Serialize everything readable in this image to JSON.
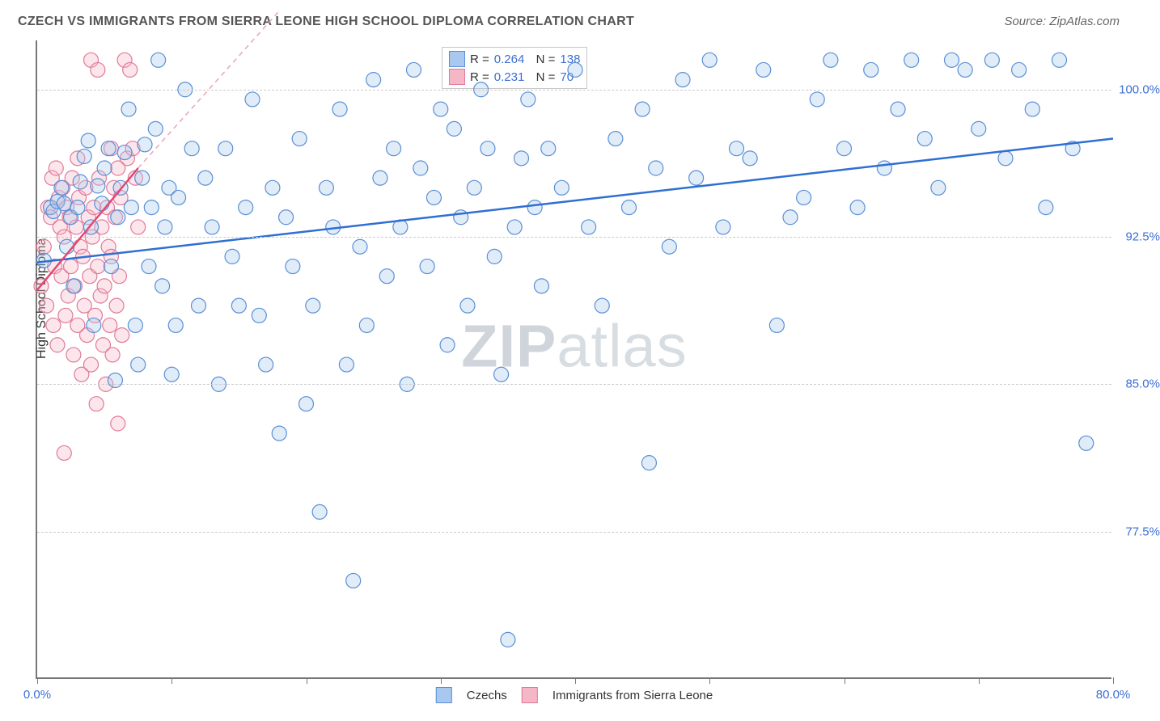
{
  "title": "CZECH VS IMMIGRANTS FROM SIERRA LEONE HIGH SCHOOL DIPLOMA CORRELATION CHART",
  "source": "Source: ZipAtlas.com",
  "y_axis_label": "High School Diploma",
  "watermark_bold": "ZIP",
  "watermark_light": "atlas",
  "chart": {
    "type": "scatter",
    "background_color": "#ffffff",
    "grid_color": "#cccccc",
    "axis_color": "#777777",
    "xlim": [
      0,
      80
    ],
    "ylim": [
      70,
      102.5
    ],
    "x_ticks": [
      0,
      10,
      20,
      30,
      40,
      50,
      60,
      70,
      80
    ],
    "x_tick_labels": {
      "0": "0.0%",
      "80": "80.0%"
    },
    "y_ticks": [
      77.5,
      85.0,
      92.5,
      100.0
    ],
    "y_tick_labels": [
      "77.5%",
      "85.0%",
      "92.5%",
      "100.0%"
    ],
    "marker_radius": 9,
    "marker_fill_opacity": 0.35,
    "trend_line_width": 2.5,
    "series": [
      {
        "name": "Czechs",
        "color_fill": "#a9c8ef",
        "color_stroke": "#5a8fd6",
        "trend_color": "#2f6fd1",
        "R": "0.264",
        "N": "138",
        "trend": {
          "x1": 0,
          "y1": 91.2,
          "x2": 80,
          "y2": 97.5
        },
        "points": [
          [
            0.5,
            91.3
          ],
          [
            1.0,
            94.0
          ],
          [
            1.2,
            93.8
          ],
          [
            1.5,
            94.3
          ],
          [
            1.8,
            95.0
          ],
          [
            2.0,
            94.2
          ],
          [
            2.2,
            92.0
          ],
          [
            2.5,
            93.5
          ],
          [
            2.7,
            90.0
          ],
          [
            3.0,
            94.0
          ],
          [
            3.2,
            95.3
          ],
          [
            3.5,
            96.6
          ],
          [
            3.8,
            97.4
          ],
          [
            4.0,
            93.0
          ],
          [
            4.2,
            88.0
          ],
          [
            4.5,
            95.1
          ],
          [
            4.8,
            94.2
          ],
          [
            5.0,
            96.0
          ],
          [
            5.3,
            97.0
          ],
          [
            5.5,
            91.0
          ],
          [
            5.8,
            85.2
          ],
          [
            6.0,
            93.5
          ],
          [
            6.2,
            95.0
          ],
          [
            6.5,
            96.8
          ],
          [
            6.8,
            99.0
          ],
          [
            7.0,
            94.0
          ],
          [
            7.3,
            88.0
          ],
          [
            7.5,
            86.0
          ],
          [
            7.8,
            95.5
          ],
          [
            8.0,
            97.2
          ],
          [
            8.3,
            91.0
          ],
          [
            8.5,
            94.0
          ],
          [
            8.8,
            98.0
          ],
          [
            9.0,
            101.5
          ],
          [
            9.3,
            90.0
          ],
          [
            9.5,
            93.0
          ],
          [
            9.8,
            95.0
          ],
          [
            10.0,
            85.5
          ],
          [
            10.3,
            88.0
          ],
          [
            10.5,
            94.5
          ],
          [
            11.0,
            100.0
          ],
          [
            11.5,
            97.0
          ],
          [
            12.0,
            89.0
          ],
          [
            12.5,
            95.5
          ],
          [
            13.0,
            93.0
          ],
          [
            13.5,
            85.0
          ],
          [
            14.0,
            97.0
          ],
          [
            14.5,
            91.5
          ],
          [
            15.0,
            89.0
          ],
          [
            15.5,
            94.0
          ],
          [
            16.0,
            99.5
          ],
          [
            16.5,
            88.5
          ],
          [
            17.0,
            86.0
          ],
          [
            17.5,
            95.0
          ],
          [
            18.0,
            82.5
          ],
          [
            18.5,
            93.5
          ],
          [
            19.0,
            91.0
          ],
          [
            19.5,
            97.5
          ],
          [
            20.0,
            84.0
          ],
          [
            20.5,
            89.0
          ],
          [
            21.0,
            78.5
          ],
          [
            21.5,
            95.0
          ],
          [
            22.0,
            93.0
          ],
          [
            22.5,
            99.0
          ],
          [
            23.0,
            86.0
          ],
          [
            23.5,
            75.0
          ],
          [
            24.0,
            92.0
          ],
          [
            24.5,
            88.0
          ],
          [
            25.0,
            100.5
          ],
          [
            25.5,
            95.5
          ],
          [
            26.0,
            90.5
          ],
          [
            26.5,
            97.0
          ],
          [
            27.0,
            93.0
          ],
          [
            27.5,
            85.0
          ],
          [
            28.0,
            101.0
          ],
          [
            28.5,
            96.0
          ],
          [
            29.0,
            91.0
          ],
          [
            29.5,
            94.5
          ],
          [
            30.0,
            99.0
          ],
          [
            30.5,
            87.0
          ],
          [
            31.0,
            98.0
          ],
          [
            31.5,
            93.5
          ],
          [
            32.0,
            89.0
          ],
          [
            32.5,
            95.0
          ],
          [
            33.0,
            100.0
          ],
          [
            33.5,
            97.0
          ],
          [
            34.0,
            91.5
          ],
          [
            34.5,
            85.5
          ],
          [
            35.0,
            72.0
          ],
          [
            35.5,
            93.0
          ],
          [
            36.0,
            96.5
          ],
          [
            36.5,
            99.5
          ],
          [
            37.0,
            94.0
          ],
          [
            37.5,
            90.0
          ],
          [
            38.0,
            97.0
          ],
          [
            39.0,
            95.0
          ],
          [
            40.0,
            101.0
          ],
          [
            41.0,
            93.0
          ],
          [
            42.0,
            89.0
          ],
          [
            43.0,
            97.5
          ],
          [
            44.0,
            94.0
          ],
          [
            45.0,
            99.0
          ],
          [
            45.5,
            81.0
          ],
          [
            46.0,
            96.0
          ],
          [
            47.0,
            92.0
          ],
          [
            48.0,
            100.5
          ],
          [
            49.0,
            95.5
          ],
          [
            50.0,
            101.5
          ],
          [
            51.0,
            93.0
          ],
          [
            52.0,
            97.0
          ],
          [
            53.0,
            96.5
          ],
          [
            54.0,
            101.0
          ],
          [
            55.0,
            88.0
          ],
          [
            56.0,
            93.5
          ],
          [
            57.0,
            94.5
          ],
          [
            58.0,
            99.5
          ],
          [
            59.0,
            101.5
          ],
          [
            60.0,
            97.0
          ],
          [
            61.0,
            94.0
          ],
          [
            62.0,
            101.0
          ],
          [
            63.0,
            96.0
          ],
          [
            64.0,
            99.0
          ],
          [
            65.0,
            101.5
          ],
          [
            66.0,
            97.5
          ],
          [
            67.0,
            95.0
          ],
          [
            68.0,
            101.5
          ],
          [
            69.0,
            101.0
          ],
          [
            70.0,
            98.0
          ],
          [
            71.0,
            101.5
          ],
          [
            72.0,
            96.5
          ],
          [
            73.0,
            101.0
          ],
          [
            74.0,
            99.0
          ],
          [
            75.0,
            94.0
          ],
          [
            76.0,
            101.5
          ],
          [
            77.0,
            97.0
          ],
          [
            78.0,
            82.0
          ]
        ]
      },
      {
        "name": "Immigrants from Sierra Leone",
        "color_fill": "#f5b7c6",
        "color_stroke": "#e07a99",
        "trend_color": "#e4476f",
        "trend_dash_color": "#e9a5b6",
        "R": "0.231",
        "N": "70",
        "trend": {
          "x1": 0,
          "y1": 89.8,
          "x2": 7.5,
          "y2": 96.0
        },
        "trend_dash": {
          "x1": 7.5,
          "y1": 96.0,
          "x2": 18,
          "y2": 104.0
        },
        "points": [
          [
            0.3,
            90.0
          ],
          [
            0.5,
            92.0
          ],
          [
            0.7,
            89.0
          ],
          [
            0.8,
            94.0
          ],
          [
            1.0,
            93.5
          ],
          [
            1.1,
            95.5
          ],
          [
            1.2,
            88.0
          ],
          [
            1.3,
            91.0
          ],
          [
            1.4,
            96.0
          ],
          [
            1.5,
            87.0
          ],
          [
            1.6,
            94.5
          ],
          [
            1.7,
            93.0
          ],
          [
            1.8,
            90.5
          ],
          [
            1.9,
            95.0
          ],
          [
            2.0,
            92.5
          ],
          [
            2.1,
            88.5
          ],
          [
            2.2,
            94.0
          ],
          [
            2.3,
            89.5
          ],
          [
            2.4,
            93.5
          ],
          [
            2.5,
            91.0
          ],
          [
            2.6,
            95.5
          ],
          [
            2.7,
            86.5
          ],
          [
            2.8,
            90.0
          ],
          [
            2.9,
            93.0
          ],
          [
            3.0,
            88.0
          ],
          [
            3.1,
            94.5
          ],
          [
            3.2,
            92.0
          ],
          [
            3.3,
            85.5
          ],
          [
            3.4,
            91.5
          ],
          [
            3.5,
            89.0
          ],
          [
            3.6,
            95.0
          ],
          [
            3.7,
            87.5
          ],
          [
            3.8,
            93.5
          ],
          [
            3.9,
            90.5
          ],
          [
            4.0,
            86.0
          ],
          [
            4.1,
            92.5
          ],
          [
            4.2,
            94.0
          ],
          [
            4.3,
            88.5
          ],
          [
            4.4,
            84.0
          ],
          [
            4.5,
            91.0
          ],
          [
            4.6,
            95.5
          ],
          [
            4.7,
            89.5
          ],
          [
            4.8,
            93.0
          ],
          [
            4.9,
            87.0
          ],
          [
            5.0,
            90.0
          ],
          [
            5.1,
            85.0
          ],
          [
            5.2,
            94.0
          ],
          [
            5.3,
            92.0
          ],
          [
            5.4,
            88.0
          ],
          [
            5.5,
            91.5
          ],
          [
            5.6,
            86.5
          ],
          [
            5.7,
            95.0
          ],
          [
            5.8,
            93.5
          ],
          [
            5.9,
            89.0
          ],
          [
            6.0,
            83.0
          ],
          [
            6.1,
            90.5
          ],
          [
            6.2,
            94.5
          ],
          [
            6.3,
            87.5
          ],
          [
            6.5,
            101.5
          ],
          [
            6.7,
            96.5
          ],
          [
            6.9,
            101.0
          ],
          [
            7.1,
            97.0
          ],
          [
            7.3,
            95.5
          ],
          [
            7.5,
            93.0
          ],
          [
            4.0,
            101.5
          ],
          [
            4.5,
            101.0
          ],
          [
            2.0,
            81.5
          ],
          [
            3.0,
            96.5
          ],
          [
            5.5,
            97.0
          ],
          [
            6.0,
            96.0
          ]
        ]
      }
    ]
  },
  "legend_bottom": [
    {
      "label": "Czechs",
      "fill": "#a9c8ef",
      "stroke": "#5a8fd6"
    },
    {
      "label": "Immigrants from Sierra Leone",
      "fill": "#f5b7c6",
      "stroke": "#e07a99"
    }
  ]
}
